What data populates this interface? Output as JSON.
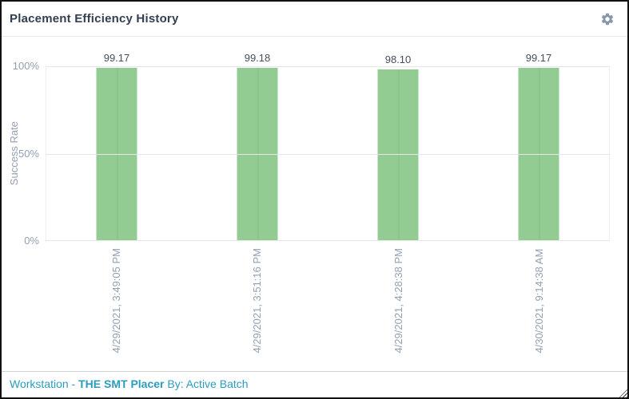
{
  "panel": {
    "title": "Placement Efficiency History"
  },
  "icons": {
    "settings": "gear-icon",
    "resize": "resize-grip-icon"
  },
  "colors": {
    "bar_fill": "#93cc93",
    "footer_text": "#2b9cbd",
    "axis_text": "#93a0b4",
    "value_label_text": "#454f5e",
    "title_text": "#333f50",
    "icon_gray": "#8496aa"
  },
  "chart_data": {
    "type": "bar",
    "title": "Placement Efficiency History",
    "categories": [
      "4/29/2021, 3:49:05 PM",
      "4/29/2021, 3:51:16 PM",
      "4/29/2021, 4:28:38 PM",
      "4/30/2021, 9:14:38 AM"
    ],
    "values": [
      99.17,
      99.18,
      98.1,
      99.17
    ],
    "value_labels": [
      "99.17",
      "99.18",
      "98.10",
      "99.17"
    ],
    "xlabel": "",
    "ylabel": "Success Rate",
    "ylim": [
      0,
      100
    ],
    "yticks": [
      {
        "value": 0,
        "label": "0%"
      },
      {
        "value": 50,
        "label": "50%"
      },
      {
        "value": 100,
        "label": "100%"
      }
    ],
    "grid": true,
    "legend": false,
    "bar_color": "#93cc93"
  },
  "footer": {
    "prefix": "Workstation - ",
    "workstation": "THE SMT Placer",
    "suffix": " By: Active Batch"
  }
}
